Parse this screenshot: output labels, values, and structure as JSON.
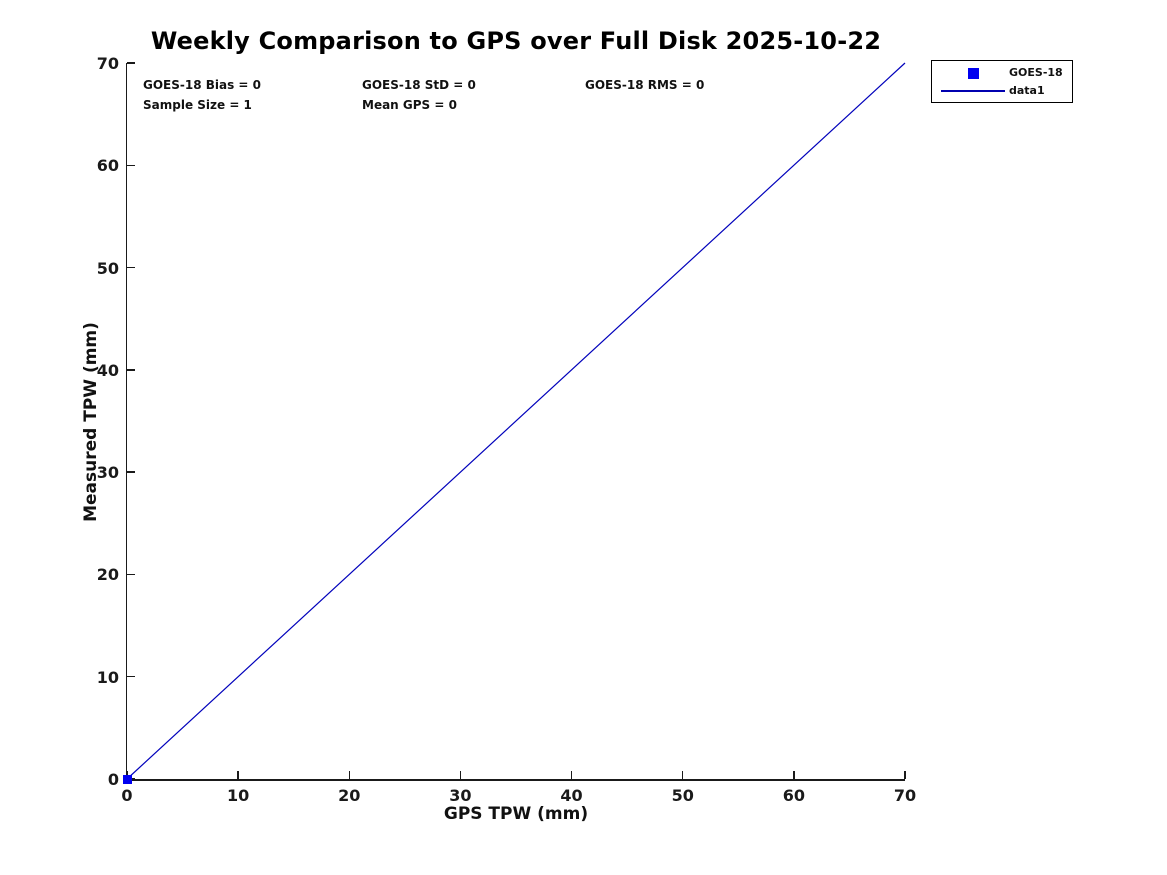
{
  "title": "Weekly Comparison to GPS over Full Disk 2025-10-22",
  "stats": {
    "row1": [
      "GOES-18 Bias = 0",
      "GOES-18 StD = 0",
      "GOES-18 RMS = 0"
    ],
    "row2": [
      "Sample Size = 1",
      "Mean GPS = 0"
    ]
  },
  "legend": {
    "entries": [
      {
        "label": "GOES-18",
        "swatch": "square-marker",
        "color": "#0000f0"
      },
      {
        "label": "data1",
        "swatch": "line",
        "color": "#0000b0"
      }
    ]
  },
  "colors": {
    "marker_blue": "#0000f0",
    "line_blue": "#0000bb",
    "axis": "#1a1a1a",
    "background": "#ffffff"
  },
  "chart_data": {
    "type": "scatter",
    "title": "Weekly Comparison to GPS over Full Disk 2025-10-22",
    "xlabel": "GPS TPW (mm)",
    "ylabel": "Measured TPW (mm)",
    "xlim": [
      0,
      70
    ],
    "ylim": [
      0,
      70
    ],
    "xticks": [
      0,
      10,
      20,
      30,
      40,
      50,
      60,
      70
    ],
    "yticks": [
      0,
      10,
      20,
      30,
      40,
      50,
      60,
      70
    ],
    "grid": false,
    "legend_position": "outside-upper-right",
    "annotations": [
      "GOES-18 Bias = 0",
      "GOES-18 StD = 0",
      "GOES-18 RMS = 0",
      "Sample Size = 1",
      "Mean GPS = 0"
    ],
    "series": [
      {
        "name": "GOES-18",
        "type": "scatter",
        "marker": "square",
        "color": "#0000f0",
        "points": [
          [
            0,
            0
          ]
        ]
      },
      {
        "name": "data1",
        "type": "line",
        "color": "#0000bb",
        "points": [
          [
            0,
            0
          ],
          [
            70,
            70
          ]
        ]
      }
    ]
  }
}
